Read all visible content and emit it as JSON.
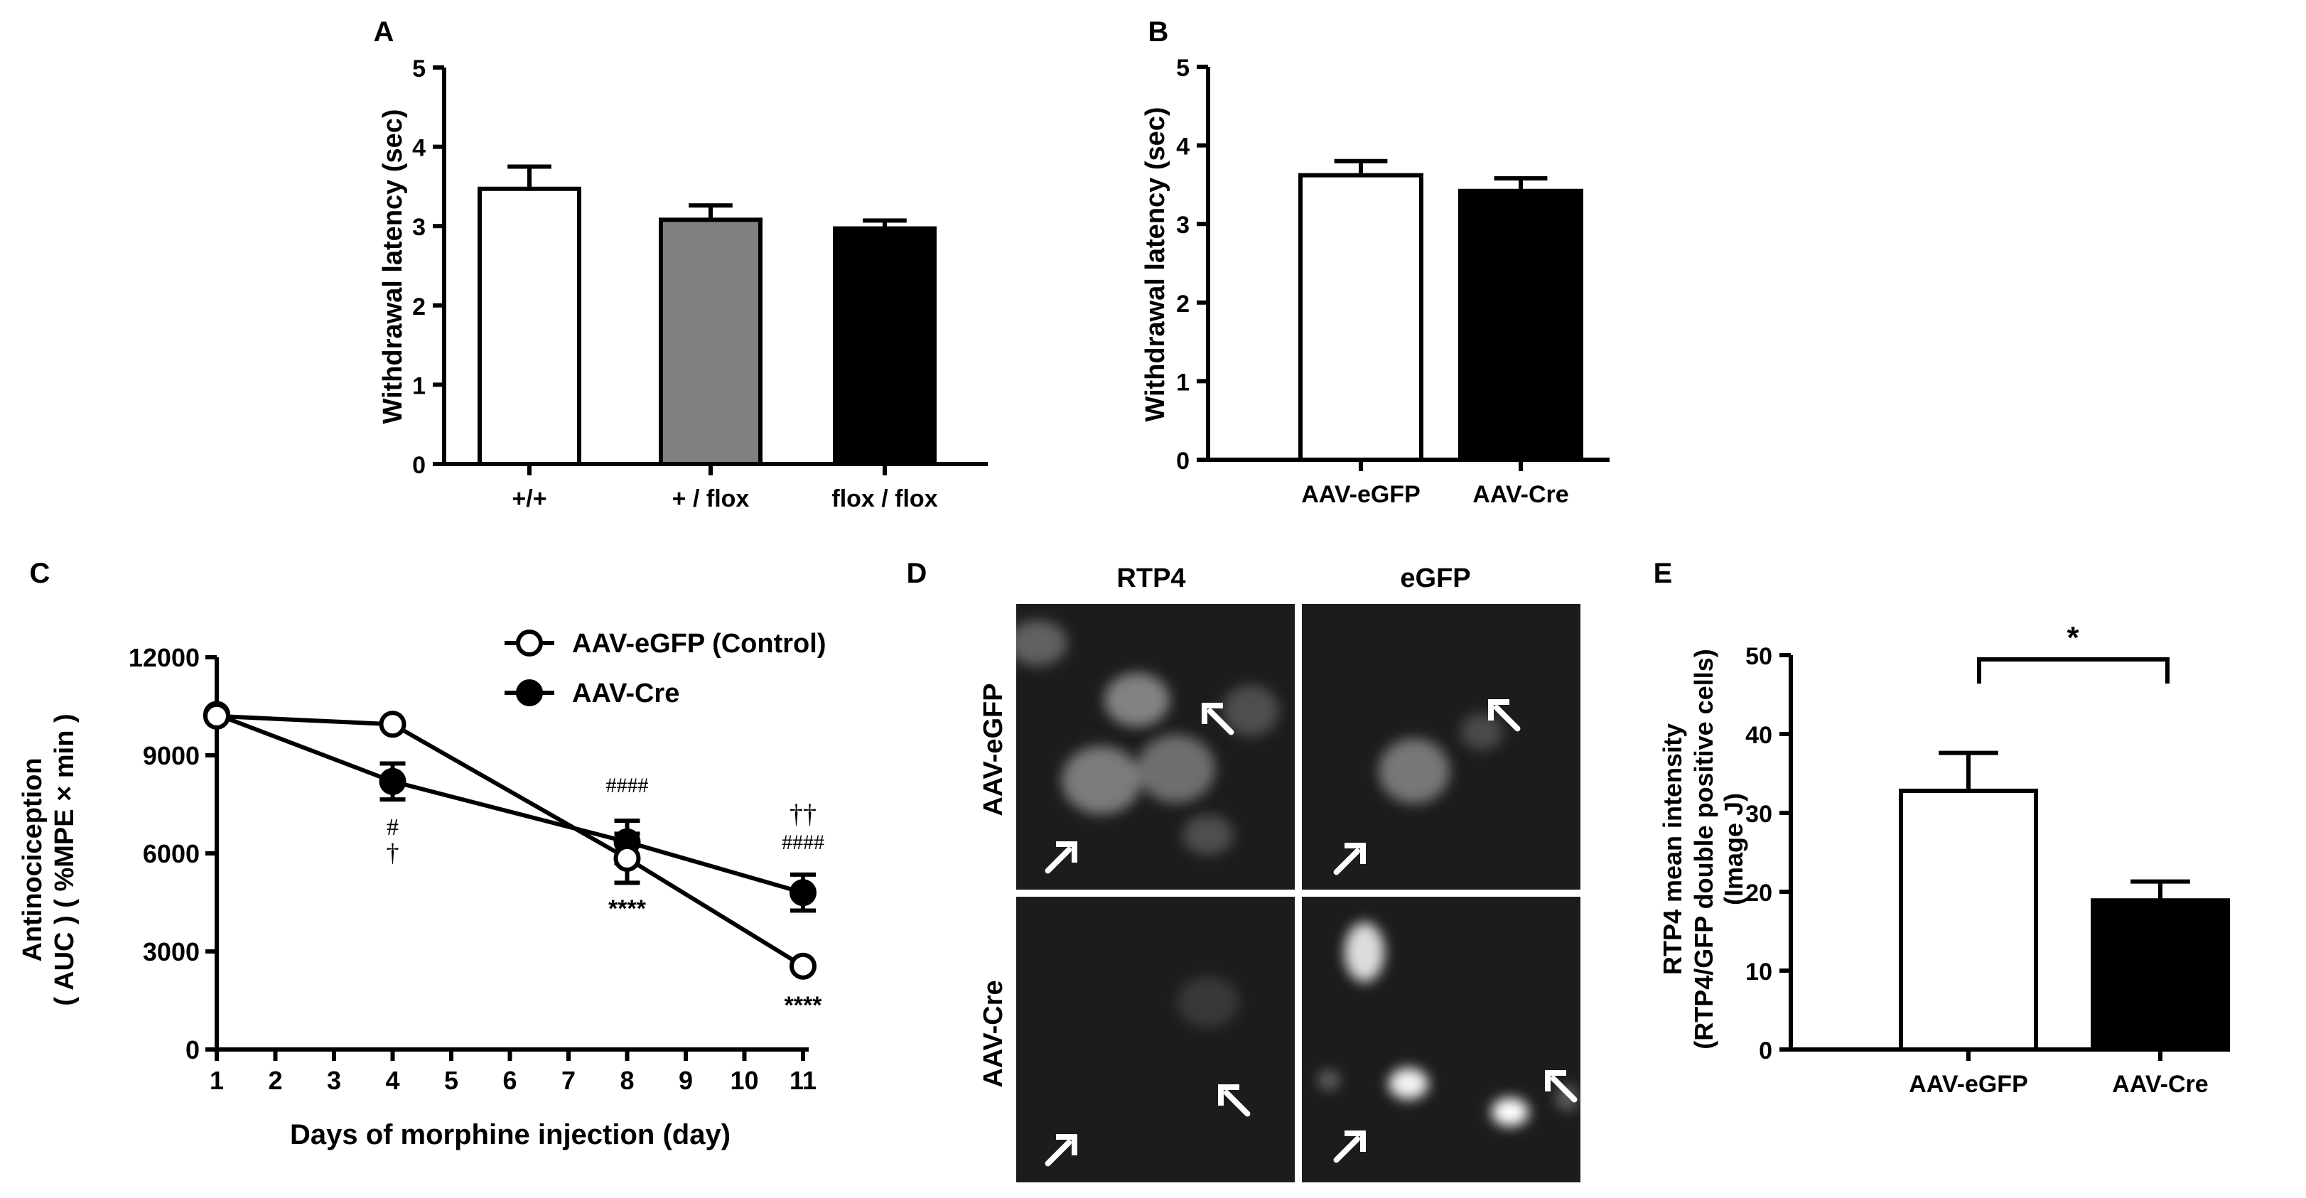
{
  "chart_data": [
    {
      "panel": "A",
      "type": "bar",
      "ylabel": "Withdrawal latency (sec)",
      "ylim": [
        0,
        5
      ],
      "yticks": [
        "0",
        "1",
        "2",
        "3",
        "4",
        "5"
      ],
      "categories": [
        "+/+",
        "+ / flox",
        "flox / flox"
      ],
      "values": [
        3.47,
        3.08,
        2.97
      ],
      "errors": [
        0.28,
        0.18,
        0.1
      ],
      "colors": [
        "#ffffff",
        "#808080",
        "#000000"
      ]
    },
    {
      "panel": "B",
      "type": "bar",
      "ylabel": "Withdrawal latency (sec)",
      "ylim": [
        0,
        5
      ],
      "yticks": [
        "0",
        "1",
        "2",
        "3",
        "4",
        "5"
      ],
      "categories": [
        "AAV-eGFP",
        "AAV-Cre"
      ],
      "values": [
        3.62,
        3.42
      ],
      "errors": [
        0.18,
        0.16
      ],
      "colors": [
        "#ffffff",
        "#000000"
      ]
    },
    {
      "panel": "C",
      "type": "line",
      "xlabel": "Days of morphine injection (day)",
      "ylabel_lines": [
        "Antinociception",
        "( AUC ) ( %MPE × min )"
      ],
      "xlim": [
        1,
        11
      ],
      "ylim": [
        0,
        12000
      ],
      "xticks": [
        "1",
        "2",
        "3",
        "4",
        "5",
        "6",
        "7",
        "8",
        "9",
        "10",
        "11"
      ],
      "yticks": [
        "0",
        "3000",
        "6000",
        "9000",
        "12000"
      ],
      "x": [
        1,
        4,
        8,
        11
      ],
      "series": [
        {
          "name": "AAV-eGFP (Control)",
          "marker": "open",
          "values": [
            10200,
            9950,
            5850,
            2550
          ],
          "errors": [
            0,
            0,
            750,
            0
          ]
        },
        {
          "name": "AAV-Cre",
          "marker": "filled",
          "values": [
            10250,
            8200,
            6350,
            4800
          ],
          "errors": [
            0,
            550,
            650,
            550
          ]
        }
      ],
      "annotations": {
        "day4_symbols": [
          "#",
          "†"
        ],
        "day8_above": "####",
        "day8_below": "****",
        "day11_above": [
          "††",
          "####"
        ],
        "day11_below": "****"
      }
    },
    {
      "panel": "E",
      "type": "bar",
      "ylabel_lines": [
        "RTP4 mean intensity",
        "(RTP4/GFP double positive cells)",
        "(Image J)"
      ],
      "ylim": [
        0,
        50
      ],
      "yticks": [
        "0",
        "10",
        "20",
        "30",
        "40",
        "50"
      ],
      "categories": [
        "AAV-eGFP",
        "AAV-Cre"
      ],
      "values": [
        32.8,
        18.9
      ],
      "errors": [
        4.8,
        2.4
      ],
      "colors": [
        "#ffffff",
        "#000000"
      ],
      "significance": "*"
    }
  ],
  "panels": {
    "a": "A",
    "b": "B",
    "c": "C",
    "d": "D",
    "e": "E"
  },
  "micrograph": {
    "columns": [
      "RTP4",
      "eGFP"
    ],
    "rows": [
      "AAV-eGFP",
      "AAV-Cre"
    ]
  }
}
